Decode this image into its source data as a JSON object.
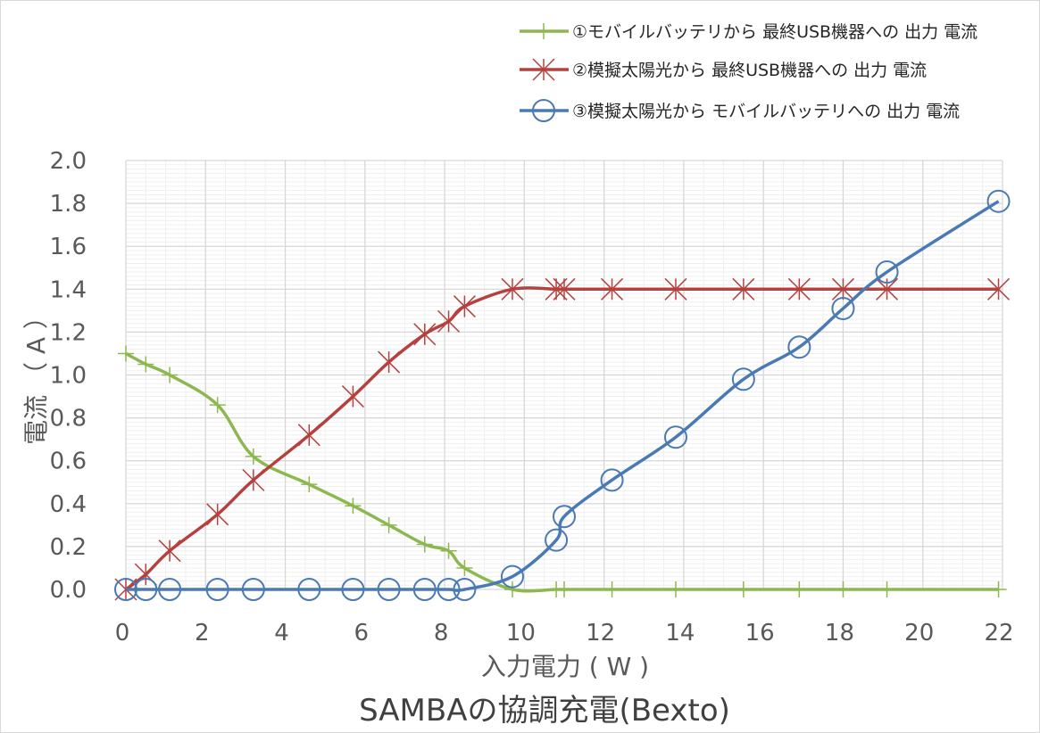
{
  "chart_data": {
    "type": "line",
    "title": "SAMBAの協調充電(Bexto)",
    "xlabel": "入力電力 ( W )",
    "ylabel": "電流 （ A ）",
    "xlim": [
      0,
      22
    ],
    "ylim": [
      0,
      2.0
    ],
    "x_ticks": [
      "0",
      "2",
      "4",
      "6",
      "8",
      "10",
      "12",
      "14",
      "16",
      "18",
      "20",
      "22"
    ],
    "y_ticks": [
      "0.0",
      "0.2",
      "0.4",
      "0.6",
      "0.8",
      "1.0",
      "1.2",
      "1.4",
      "1.6",
      "1.8",
      "2.0"
    ],
    "grid": true,
    "legend_position": "top-right",
    "series": [
      {
        "name": "①モバイルバッテリから 最終USB機器への 出力 電流",
        "color": "#8cb84f",
        "marker": "plus",
        "points": [
          [
            0,
            1.1
          ],
          [
            0.5,
            1.05
          ],
          [
            1.1,
            1.0
          ],
          [
            2.3,
            0.86
          ],
          [
            3.2,
            0.62
          ],
          [
            4.6,
            0.49
          ],
          [
            5.7,
            0.39
          ],
          [
            6.6,
            0.3
          ],
          [
            7.5,
            0.21
          ],
          [
            8.1,
            0.18
          ],
          [
            8.5,
            0.1
          ],
          [
            9.7,
            0.0
          ],
          [
            10.8,
            0.0
          ],
          [
            11.0,
            0.0
          ],
          [
            12.2,
            0.0
          ],
          [
            13.8,
            0.0
          ],
          [
            15.5,
            0.0
          ],
          [
            16.9,
            0.0
          ],
          [
            18.0,
            0.0
          ],
          [
            19.1,
            0.0
          ],
          [
            21.9,
            0.0
          ]
        ]
      },
      {
        "name": "②模擬太陽光から 最終USB機器への 出力 電流",
        "color": "#b5413f",
        "marker": "star",
        "points": [
          [
            0,
            0.0
          ],
          [
            0.5,
            0.07
          ],
          [
            1.1,
            0.18
          ],
          [
            2.3,
            0.35
          ],
          [
            3.2,
            0.51
          ],
          [
            4.6,
            0.72
          ],
          [
            5.7,
            0.9
          ],
          [
            6.6,
            1.06
          ],
          [
            7.5,
            1.19
          ],
          [
            8.1,
            1.25
          ],
          [
            8.5,
            1.32
          ],
          [
            9.7,
            1.4
          ],
          [
            10.8,
            1.4
          ],
          [
            11.0,
            1.4
          ],
          [
            12.2,
            1.4
          ],
          [
            13.8,
            1.4
          ],
          [
            15.5,
            1.4
          ],
          [
            16.9,
            1.4
          ],
          [
            18.0,
            1.4
          ],
          [
            19.1,
            1.4
          ],
          [
            21.9,
            1.4
          ]
        ]
      },
      {
        "name": "③模擬太陽光から モバイルバッテリへの 出力 電流",
        "color": "#4a7ab3",
        "marker": "circle",
        "points": [
          [
            0,
            0.0
          ],
          [
            0.5,
            0.0
          ],
          [
            1.1,
            0.0
          ],
          [
            2.3,
            0.0
          ],
          [
            3.2,
            0.0
          ],
          [
            4.6,
            0.0
          ],
          [
            5.7,
            0.0
          ],
          [
            6.6,
            0.0
          ],
          [
            7.5,
            0.0
          ],
          [
            8.1,
            0.0
          ],
          [
            8.5,
            0.0
          ],
          [
            9.7,
            0.06
          ],
          [
            10.8,
            0.23
          ],
          [
            11.0,
            0.34
          ],
          [
            12.2,
            0.51
          ],
          [
            13.8,
            0.71
          ],
          [
            15.5,
            0.98
          ],
          [
            16.9,
            1.13
          ],
          [
            18.0,
            1.31
          ],
          [
            19.1,
            1.48
          ],
          [
            21.9,
            1.81
          ]
        ]
      }
    ]
  }
}
